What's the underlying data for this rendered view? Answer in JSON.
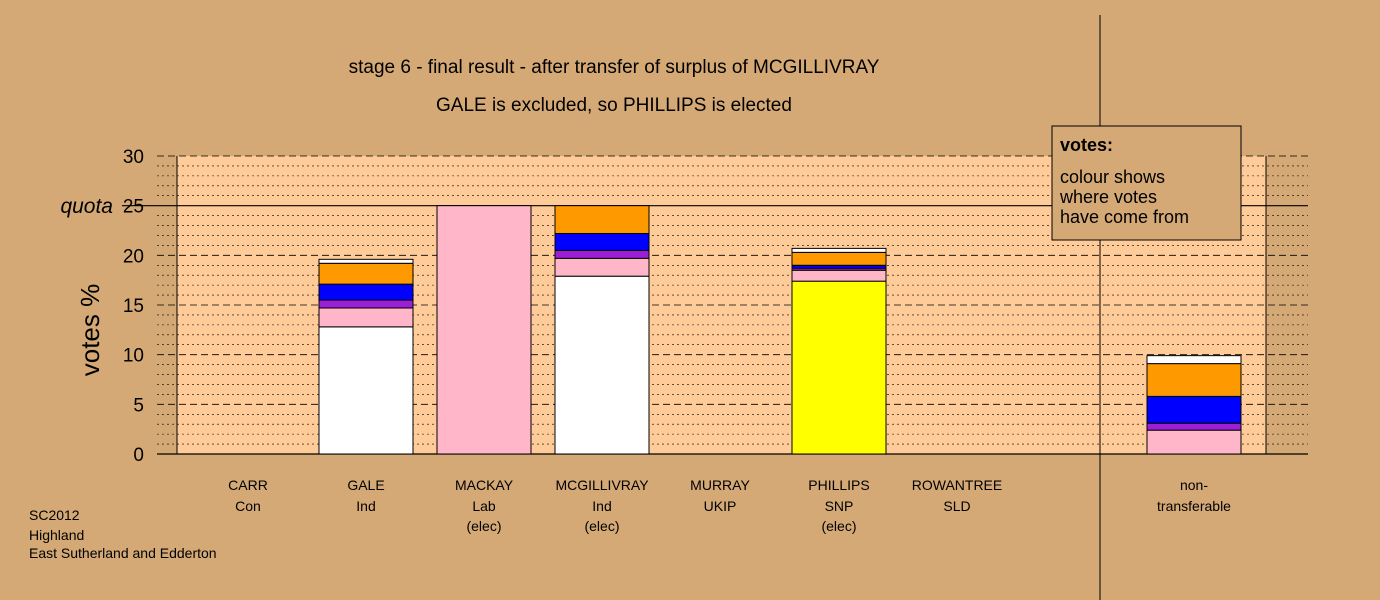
{
  "chart_data": {
    "type": "bar",
    "stacked": true,
    "title": "stage 6 - final result - after transfer of surplus of MCGILLIVRAY",
    "subtitle": "GALE is excluded, so PHILLIPS is elected",
    "ylabel": "votes %",
    "ylim": [
      0,
      30
    ],
    "yticks": [
      0,
      5,
      10,
      15,
      20,
      25,
      30
    ],
    "quota": 25,
    "quota_label": "quota",
    "grid": true,
    "legend_position": "top-right",
    "legend": {
      "title": "votes:",
      "lines": [
        "colour shows",
        "where votes",
        "have come from"
      ]
    },
    "candidates": [
      {
        "name": "CARR",
        "party": "Con",
        "note": "",
        "segments": []
      },
      {
        "name": "GALE",
        "party": "Ind",
        "note": "",
        "segments": [
          {
            "color": "#FFFFFF",
            "value": 12.8
          },
          {
            "color": "#FFB6C8",
            "value": 1.9
          },
          {
            "color": "#9B1FD6",
            "value": 0.8
          },
          {
            "color": "#0000FF",
            "value": 1.6
          },
          {
            "color": "#FF9900",
            "value": 2.1
          },
          {
            "color": "#FFFFFF",
            "value": 0.4
          }
        ]
      },
      {
        "name": "MACKAY",
        "party": "Lab",
        "note": "(elec)",
        "segments": [
          {
            "color": "#FFB6C8",
            "value": 25.0
          }
        ]
      },
      {
        "name": "MCGILLIVRAY",
        "party": "Ind",
        "note": "(elec)",
        "segments": [
          {
            "color": "#FFFFFF",
            "value": 17.9
          },
          {
            "color": "#FFB6C8",
            "value": 1.8
          },
          {
            "color": "#9B1FD6",
            "value": 0.8
          },
          {
            "color": "#0000FF",
            "value": 1.7
          },
          {
            "color": "#FF9900",
            "value": 2.8
          }
        ]
      },
      {
        "name": "MURRAY",
        "party": "UKIP",
        "note": "",
        "segments": []
      },
      {
        "name": "PHILLIPS",
        "party": "SNP",
        "note": "(elec)",
        "segments": [
          {
            "color": "#FFFF00",
            "value": 17.4
          },
          {
            "color": "#FFB6C8",
            "value": 1.1
          },
          {
            "color": "#9B1FD6",
            "value": 0.2
          },
          {
            "color": "#0000FF",
            "value": 0.3
          },
          {
            "color": "#FF9900",
            "value": 1.3
          },
          {
            "color": "#FFFFFF",
            "value": 0.4
          }
        ]
      },
      {
        "name": "ROWANTREE",
        "party": "SLD",
        "note": "",
        "segments": []
      }
    ],
    "nontransferable": {
      "label_line1": "non-",
      "label_line2": "transferable",
      "segments": [
        {
          "color": "#FFB6C8",
          "value": 2.4
        },
        {
          "color": "#9B1FD6",
          "value": 0.7
        },
        {
          "color": "#0000FF",
          "value": 2.7
        },
        {
          "color": "#FF9900",
          "value": 3.3
        },
        {
          "color": "#FFFFFF",
          "value": 0.8
        }
      ]
    }
  },
  "footer": {
    "line1": "SC2012",
    "line2": "Highland",
    "line3": "East Sutherland and Edderton"
  },
  "colors": {
    "background": "#D4A976",
    "plot_area": "#FFCC99"
  }
}
